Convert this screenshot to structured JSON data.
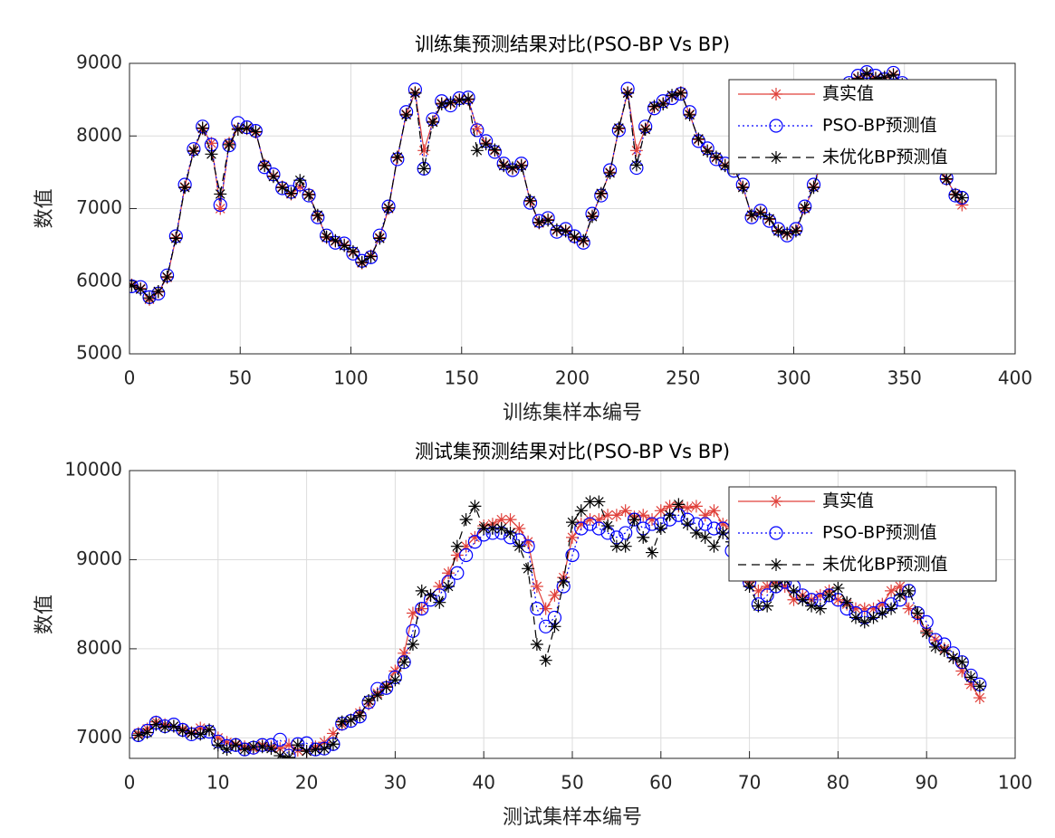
{
  "chart_data": [
    {
      "type": "line",
      "title": "训练集预测结果对比(PSO-BP Vs BP)",
      "xlabel": "训练集样本编号",
      "ylabel": "数值",
      "x": [
        1,
        5,
        9,
        13,
        17,
        21,
        25,
        29,
        33,
        37,
        41,
        45,
        49,
        53,
        57,
        61,
        65,
        69,
        73,
        77,
        81,
        85,
        89,
        93,
        97,
        101,
        105,
        109,
        113,
        117,
        121,
        125,
        129,
        133,
        137,
        141,
        145,
        149,
        153,
        157,
        161,
        165,
        169,
        173,
        177,
        181,
        185,
        189,
        193,
        197,
        201,
        205,
        209,
        213,
        217,
        221,
        225,
        229,
        233,
        237,
        241,
        245,
        249,
        253,
        257,
        261,
        265,
        269,
        273,
        277,
        281,
        285,
        289,
        293,
        297,
        301,
        305,
        309,
        313,
        317,
        321,
        325,
        329,
        333,
        337,
        341,
        345,
        349,
        353,
        357,
        361,
        365,
        369,
        373,
        376
      ],
      "series": [
        {
          "name": "真实值",
          "color": "#e0403a",
          "linestyle": "-",
          "marker": "*",
          "values": [
            5950,
            5900,
            5750,
            5850,
            6050,
            6600,
            7300,
            7800,
            8100,
            7900,
            7000,
            7900,
            8100,
            8100,
            8050,
            7600,
            7450,
            7300,
            7200,
            7300,
            7200,
            6900,
            6600,
            6550,
            6500,
            6400,
            6250,
            6350,
            6600,
            7000,
            7700,
            8300,
            8600,
            7800,
            8200,
            8450,
            8450,
            8500,
            8500,
            8100,
            7900,
            7800,
            7600,
            7550,
            7600,
            7100,
            6800,
            6850,
            6700,
            6700,
            6600,
            6550,
            6900,
            7200,
            7500,
            8100,
            8600,
            7800,
            8100,
            8400,
            8450,
            8550,
            8600,
            8300,
            7950,
            7800,
            7700,
            7600,
            7550,
            7300,
            6900,
            6950,
            6850,
            6700,
            6650,
            6700,
            7000,
            7300,
            7700,
            8200,
            8500,
            8700,
            8800,
            8850,
            8800,
            8800,
            8850,
            8700,
            8500,
            8200,
            7900,
            7650,
            7400,
            7200,
            7050
          ]
        },
        {
          "name": "PSO-BP预测值",
          "color": "#0000ff",
          "linestyle": ":",
          "marker": "o",
          "values": [
            5930,
            5920,
            5780,
            5830,
            6080,
            6620,
            7330,
            7820,
            8130,
            7880,
            7050,
            7870,
            8180,
            8120,
            8070,
            7570,
            7470,
            7280,
            7230,
            7330,
            7180,
            6880,
            6630,
            6530,
            6520,
            6380,
            6280,
            6330,
            6630,
            7030,
            7680,
            8330,
            8640,
            7550,
            8230,
            8480,
            8420,
            8520,
            8530,
            8080,
            7930,
            7780,
            7620,
            7530,
            7620,
            7080,
            6830,
            6870,
            6680,
            6720,
            6620,
            6530,
            6930,
            7180,
            7530,
            8080,
            8650,
            7560,
            8130,
            8380,
            8480,
            8520,
            8580,
            8330,
            7930,
            7830,
            7680,
            7620,
            7520,
            7330,
            6880,
            6970,
            6830,
            6720,
            6630,
            6720,
            7030,
            7330,
            7730,
            8180,
            8530,
            8730,
            8830,
            8880,
            8830,
            8780,
            8870,
            8730,
            8520,
            8230,
            7880,
            7680,
            7420,
            7180,
            7150
          ]
        },
        {
          "name": "未优化BP预测值",
          "color": "#000000",
          "linestyle": "--",
          "marker": "*",
          "values": [
            5940,
            5890,
            5770,
            5860,
            6060,
            6590,
            7290,
            7790,
            8110,
            7750,
            7200,
            7880,
            8090,
            8110,
            8060,
            7590,
            7440,
            7290,
            7210,
            7390,
            7190,
            6910,
            6610,
            6560,
            6490,
            6410,
            6260,
            6340,
            6590,
            7010,
            7710,
            8290,
            8590,
            7550,
            8190,
            8440,
            8460,
            8490,
            8510,
            7800,
            7890,
            7810,
            7590,
            7560,
            7590,
            7110,
            6810,
            6840,
            6710,
            6690,
            6610,
            6560,
            6890,
            7210,
            7490,
            8110,
            8590,
            7600,
            8090,
            8410,
            8440,
            8560,
            8590,
            8290,
            7960,
            7790,
            7710,
            7590,
            7560,
            7290,
            6910,
            6940,
            6860,
            6690,
            6660,
            6690,
            7010,
            7290,
            7710,
            8190,
            8490,
            8710,
            8790,
            8860,
            8790,
            8810,
            8840,
            8710,
            8490,
            8210,
            7910,
            7640,
            7410,
            7190,
            7150
          ]
        }
      ],
      "xlim": [
        0,
        400
      ],
      "ylim": [
        5000,
        9000
      ],
      "xticks": [
        0,
        50,
        100,
        150,
        200,
        250,
        300,
        350,
        400
      ],
      "yticks": [
        5000,
        6000,
        7000,
        8000,
        9000
      ],
      "grid": true,
      "legend": "upper right"
    },
    {
      "type": "line",
      "title": "测试集预测结果对比(PSO-BP Vs BP)",
      "xlabel": "测试集样本编号",
      "ylabel": "数值",
      "x": [
        1,
        2,
        3,
        4,
        5,
        6,
        7,
        8,
        9,
        10,
        11,
        12,
        13,
        14,
        15,
        16,
        17,
        18,
        19,
        20,
        21,
        22,
        23,
        24,
        25,
        26,
        27,
        28,
        29,
        30,
        31,
        32,
        33,
        34,
        35,
        36,
        37,
        38,
        39,
        40,
        41,
        42,
        43,
        44,
        45,
        46,
        47,
        48,
        49,
        50,
        51,
        52,
        53,
        54,
        55,
        56,
        57,
        58,
        59,
        60,
        61,
        62,
        63,
        64,
        65,
        66,
        67,
        68,
        69,
        70,
        71,
        72,
        73,
        74,
        75,
        76,
        77,
        78,
        79,
        80,
        81,
        82,
        83,
        84,
        85,
        86,
        87,
        88,
        89,
        90,
        91,
        92,
        93,
        94,
        95,
        96
      ],
      "series": [
        {
          "name": "真实值",
          "color": "#e0403a",
          "linestyle": "-",
          "marker": "*",
          "values": [
            7050,
            7100,
            7180,
            7150,
            7130,
            7100,
            7060,
            7110,
            7090,
            7000,
            6950,
            6930,
            6900,
            6880,
            6920,
            6900,
            6880,
            6920,
            6860,
            6850,
            6900,
            6950,
            7050,
            7150,
            7200,
            7280,
            7380,
            7500,
            7580,
            7750,
            7950,
            8400,
            8450,
            8600,
            8700,
            8850,
            9050,
            9150,
            9250,
            9380,
            9400,
            9450,
            9450,
            9350,
            9200,
            8700,
            8450,
            8600,
            8800,
            9250,
            9400,
            9450,
            9450,
            9500,
            9500,
            9550,
            9480,
            9500,
            9450,
            9550,
            9600,
            9600,
            9580,
            9600,
            9500,
            9550,
            9400,
            9350,
            9050,
            8750,
            8650,
            8700,
            8750,
            8700,
            8550,
            8600,
            8550,
            8600,
            8650,
            8550,
            8500,
            8450,
            8450,
            8450,
            8500,
            8650,
            8700,
            8450,
            8350,
            8200,
            8100,
            8000,
            7900,
            7750,
            7600,
            7450
          ]
        },
        {
          "name": "PSO-BP预测值",
          "color": "#0000ff",
          "linestyle": ":",
          "marker": "o",
          "values": [
            7030,
            7080,
            7170,
            7130,
            7150,
            7090,
            7040,
            7060,
            7070,
            6960,
            6910,
            6920,
            6870,
            6890,
            6920,
            6920,
            6980,
            6800,
            6930,
            6940,
            6870,
            6880,
            6930,
            7160,
            7190,
            7240,
            7400,
            7550,
            7560,
            7680,
            7850,
            8200,
            8450,
            8550,
            8600,
            8750,
            8850,
            9050,
            9200,
            9280,
            9300,
            9300,
            9250,
            9220,
            9150,
            8450,
            8250,
            8350,
            8700,
            9050,
            9350,
            9400,
            9350,
            9300,
            9250,
            9300,
            9450,
            9350,
            9400,
            9400,
            9450,
            9500,
            9450,
            9400,
            9400,
            9350,
            9350,
            9100,
            9000,
            8750,
            8500,
            8600,
            8700,
            8750,
            8700,
            8600,
            8550,
            8550,
            8600,
            8550,
            8450,
            8400,
            8350,
            8400,
            8450,
            8500,
            8550,
            8650,
            8400,
            8300,
            8100,
            8050,
            7950,
            7850,
            7700,
            7600
          ]
        },
        {
          "name": "未优化BP预测值",
          "color": "#000000",
          "linestyle": "--",
          "marker": "*",
          "values": [
            7030,
            7060,
            7150,
            7120,
            7130,
            7080,
            7050,
            7040,
            7090,
            6920,
            6870,
            6920,
            6870,
            6900,
            6900,
            6880,
            6800,
            6780,
            6920,
            6850,
            6870,
            6880,
            6930,
            7180,
            7200,
            7250,
            7420,
            7480,
            7570,
            7650,
            7850,
            8050,
            8650,
            8600,
            8520,
            8700,
            9150,
            9450,
            9600,
            9350,
            9350,
            9350,
            9300,
            9150,
            8900,
            8050,
            7870,
            8250,
            8750,
            9420,
            9550,
            9650,
            9650,
            9380,
            9150,
            9150,
            9450,
            9250,
            9080,
            9350,
            9500,
            9620,
            9400,
            9300,
            9250,
            9150,
            9300,
            9200,
            8950,
            8700,
            8480,
            8480,
            8700,
            8780,
            8650,
            8550,
            8480,
            8450,
            8600,
            8680,
            8520,
            8350,
            8300,
            8350,
            8400,
            8450,
            8600,
            8650,
            8400,
            8180,
            8020,
            7980,
            7900,
            7850,
            7680,
            7580
          ]
        }
      ],
      "xlim": [
        0,
        100
      ],
      "ylim": [
        6770,
        10000
      ],
      "xticks": [
        0,
        10,
        20,
        30,
        40,
        50,
        60,
        70,
        80,
        90,
        100
      ],
      "yticks": [
        7000,
        8000,
        9000,
        10000
      ],
      "grid": true,
      "legend": "upper right"
    }
  ]
}
